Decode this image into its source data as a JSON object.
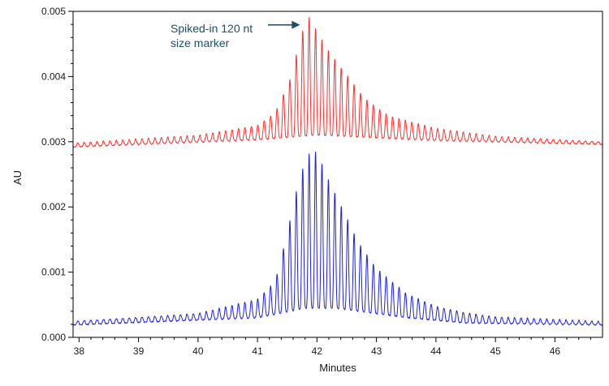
{
  "chart_data": {
    "type": "line",
    "title": "",
    "xlabel": "Minutes",
    "ylabel": "AU",
    "xlim": [
      37.9,
      46.8
    ],
    "ylim": [
      0.0,
      0.005
    ],
    "x_ticks": [
      38,
      39,
      40,
      41,
      42,
      43,
      44,
      45,
      46
    ],
    "x_tick_labels": [
      "38",
      "39",
      "40",
      "41",
      "42",
      "43",
      "44",
      "45",
      "46"
    ],
    "y_ticks": [
      0.0,
      0.001,
      0.002,
      0.003,
      0.004,
      0.005
    ],
    "y_tick_labels": [
      "0.000",
      "0.001",
      "0.002",
      "0.003",
      "0.004",
      "0.005"
    ],
    "grid": false,
    "legend": "none",
    "series": [
      {
        "color": "#ff3030",
        "peak_spacing_min": 0.108,
        "first_peak_min": 37.98,
        "baseline": [
          [
            37.9,
            0.00292
          ],
          [
            41.0,
            0.00303
          ],
          [
            42.0,
            0.0031
          ],
          [
            44.0,
            0.00302
          ],
          [
            46.8,
            0.00296
          ]
        ],
        "peak_envelope": [
          [
            37.9,
            6e-05
          ],
          [
            40.0,
            0.0001
          ],
          [
            41.0,
            0.00022
          ],
          [
            41.3,
            0.0004
          ],
          [
            41.55,
            0.0009
          ],
          [
            41.75,
            0.0016
          ],
          [
            41.85,
            0.00185
          ],
          [
            42.0,
            0.0016
          ],
          [
            42.2,
            0.0013
          ],
          [
            42.5,
            0.00095
          ],
          [
            42.8,
            0.0006
          ],
          [
            43.2,
            0.00035
          ],
          [
            44.0,
            0.00018
          ],
          [
            45.0,
            8e-05
          ],
          [
            46.8,
            4e-05
          ]
        ]
      },
      {
        "color": "#2020dd",
        "peak_spacing_min": 0.108,
        "first_peak_min": 37.98,
        "baseline": [
          [
            37.9,
            0.00019
          ],
          [
            41.0,
            0.0003
          ],
          [
            41.8,
            0.00045
          ],
          [
            42.3,
            0.00045
          ],
          [
            43.5,
            0.0003
          ],
          [
            44.5,
            0.00022
          ],
          [
            46.8,
            0.00019
          ]
        ],
        "peak_envelope": [
          [
            37.9,
            6e-05
          ],
          [
            40.0,
            0.0001
          ],
          [
            41.0,
            0.00028
          ],
          [
            41.3,
            0.0005
          ],
          [
            41.5,
            0.0012
          ],
          [
            41.7,
            0.002
          ],
          [
            41.85,
            0.00235
          ],
          [
            42.0,
            0.0024
          ],
          [
            42.2,
            0.00195
          ],
          [
            42.45,
            0.0015
          ],
          [
            42.7,
            0.00105
          ],
          [
            43.0,
            0.0007
          ],
          [
            43.5,
            0.00038
          ],
          [
            44.0,
            0.00022
          ],
          [
            45.0,
            0.0001
          ],
          [
            46.8,
            5e-05
          ]
        ]
      }
    ],
    "annotations": [
      {
        "lines": [
          "Spiked-in 120 nt",
          "size marker"
        ],
        "color": "#1f4e63",
        "points_to": [
          41.85,
          0.00488
        ]
      }
    ]
  }
}
